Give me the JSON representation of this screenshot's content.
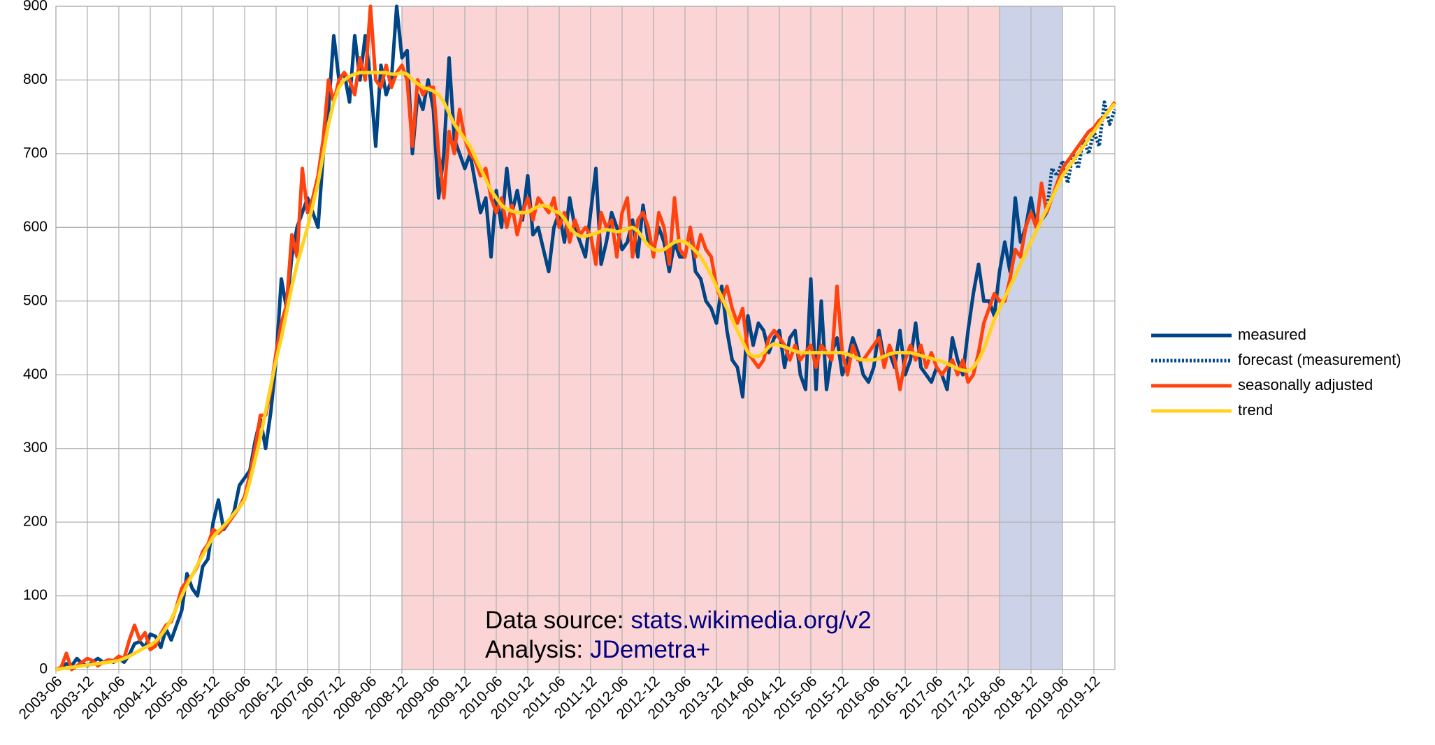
{
  "chart_data": {
    "type": "line",
    "categories": [
      "2003-06",
      null,
      null,
      null,
      null,
      null,
      "2003-12",
      null,
      null,
      null,
      null,
      null,
      "2004-06",
      null,
      null,
      null,
      null,
      null,
      "2004-12",
      null,
      null,
      null,
      null,
      null,
      "2005-06",
      null,
      null,
      null,
      null,
      null,
      "2005-12",
      null,
      null,
      null,
      null,
      null,
      "2006-06",
      null,
      null,
      null,
      null,
      null,
      "2006-12",
      null,
      null,
      null,
      null,
      null,
      "2007-06",
      null,
      null,
      null,
      null,
      null,
      "2007-12",
      null,
      null,
      null,
      null,
      null,
      "2008-06",
      null,
      null,
      null,
      null,
      null,
      "2008-12",
      null,
      null,
      null,
      null,
      null,
      "2009-06",
      null,
      null,
      null,
      null,
      null,
      "2009-12",
      null,
      null,
      null,
      null,
      null,
      "2010-06",
      null,
      null,
      null,
      null,
      null,
      "2010-12",
      null,
      null,
      null,
      null,
      null,
      "2011-06",
      null,
      null,
      null,
      null,
      null,
      "2011-12",
      null,
      null,
      null,
      null,
      null,
      "2012-06",
      null,
      null,
      null,
      null,
      null,
      "2012-12",
      null,
      null,
      null,
      null,
      null,
      "2013-06",
      null,
      null,
      null,
      null,
      null,
      "2013-12",
      null,
      null,
      null,
      null,
      null,
      "2014-06",
      null,
      null,
      null,
      null,
      null,
      "2014-12",
      null,
      null,
      null,
      null,
      null,
      "2015-06",
      null,
      null,
      null,
      null,
      null,
      "2015-12",
      null,
      null,
      null,
      null,
      null,
      "2016-06",
      null,
      null,
      null,
      null,
      null,
      "2016-12",
      null,
      null,
      null,
      null,
      null,
      "2017-06",
      null,
      null,
      null,
      null,
      null,
      "2017-12",
      null,
      null,
      null,
      null,
      null,
      "2018-06",
      null,
      null,
      null,
      null,
      null,
      "2018-12",
      null,
      null,
      null,
      null,
      null,
      "2019-06",
      null,
      null,
      null,
      null,
      null,
      "2019-12",
      null,
      null,
      null,
      null
    ],
    "series": [
      {
        "name": "measured",
        "color": "#004586",
        "style": "solid",
        "values": [
          0,
          2,
          8,
          5,
          15,
          8,
          5,
          10,
          15,
          10,
          12,
          10,
          15,
          10,
          20,
          35,
          38,
          30,
          48,
          45,
          30,
          55,
          40,
          60,
          80,
          130,
          110,
          100,
          140,
          150,
          200,
          230,
          190,
          200,
          215,
          250,
          260,
          270,
          310,
          340,
          300,
          350,
          420,
          530,
          490,
          560,
          600,
          620,
          640,
          620,
          600,
          700,
          760,
          860,
          800,
          810,
          770,
          860,
          800,
          860,
          800,
          710,
          820,
          780,
          800,
          900,
          830,
          840,
          700,
          780,
          760,
          800,
          760,
          640,
          700,
          830,
          720,
          700,
          680,
          700,
          660,
          620,
          640,
          560,
          650,
          600,
          680,
          620,
          650,
          610,
          670,
          590,
          600,
          570,
          540,
          600,
          620,
          580,
          640,
          600,
          580,
          560,
          620,
          680,
          550,
          580,
          620,
          600,
          570,
          580,
          610,
          560,
          630,
          580,
          570,
          600,
          580,
          540,
          580,
          560,
          560,
          600,
          540,
          530,
          500,
          490,
          470,
          520,
          460,
          420,
          410,
          370,
          480,
          440,
          470,
          460,
          430,
          450,
          460,
          410,
          450,
          460,
          400,
          380,
          530,
          380,
          500,
          380,
          430,
          450,
          400,
          420,
          450,
          430,
          400,
          390,
          410,
          460,
          420,
          430,
          410,
          460,
          400,
          420,
          470,
          410,
          400,
          390,
          410,
          400,
          380,
          450,
          420,
          400,
          460,
          510,
          550,
          500,
          500,
          480,
          540,
          580,
          540,
          640,
          580,
          600,
          640,
          600,
          610,
          620,
          null,
          null,
          null,
          null,
          null,
          null,
          null,
          null,
          null,
          null,
          null,
          null,
          null
        ]
      },
      {
        "name": "forecast (measurement)",
        "color": "#004586",
        "style": "dotted",
        "values": [
          null,
          null,
          null,
          null,
          null,
          null,
          null,
          null,
          null,
          null,
          null,
          null,
          null,
          null,
          null,
          null,
          null,
          null,
          null,
          null,
          null,
          null,
          null,
          null,
          null,
          null,
          null,
          null,
          null,
          null,
          null,
          null,
          null,
          null,
          null,
          null,
          null,
          null,
          null,
          null,
          null,
          null,
          null,
          null,
          null,
          null,
          null,
          null,
          null,
          null,
          null,
          null,
          null,
          null,
          null,
          null,
          null,
          null,
          null,
          null,
          null,
          null,
          null,
          null,
          null,
          null,
          null,
          null,
          null,
          null,
          null,
          null,
          null,
          null,
          null,
          null,
          null,
          null,
          null,
          null,
          null,
          null,
          null,
          null,
          null,
          null,
          null,
          null,
          null,
          null,
          null,
          null,
          null,
          null,
          null,
          null,
          null,
          null,
          null,
          null,
          null,
          null,
          null,
          null,
          null,
          null,
          null,
          null,
          null,
          null,
          null,
          null,
          null,
          null,
          null,
          null,
          null,
          null,
          null,
          null,
          null,
          null,
          null,
          null,
          null,
          null,
          null,
          null,
          null,
          null,
          null,
          null,
          null,
          null,
          null,
          null,
          null,
          null,
          null,
          null,
          null,
          null,
          null,
          null,
          null,
          null,
          null,
          null,
          null,
          null,
          null,
          null,
          null,
          null,
          null,
          null,
          null,
          null,
          null,
          null,
          null,
          null,
          null,
          null,
          null,
          null,
          null,
          null,
          null,
          null,
          null,
          null,
          null,
          null,
          null,
          null,
          null,
          null,
          null,
          null,
          null,
          null,
          null,
          null,
          null,
          null,
          null,
          null,
          null,
          620,
          680,
          670,
          690,
          660,
          700,
          680,
          720,
          700,
          730,
          710,
          770,
          740,
          760
        ]
      },
      {
        "name": "seasonally adjusted",
        "color": "#ff420e",
        "style": "solid",
        "values": [
          0,
          3,
          22,
          0,
          5,
          10,
          15,
          12,
          5,
          10,
          13,
          12,
          18,
          15,
          40,
          60,
          40,
          50,
          27,
          32,
          48,
          60,
          65,
          85,
          110,
          120,
          128,
          140,
          160,
          170,
          190,
          185,
          192,
          200,
          210,
          220,
          235,
          265,
          300,
          345,
          345,
          380,
          430,
          470,
          495,
          590,
          560,
          680,
          620,
          640,
          670,
          720,
          800,
          770,
          800,
          810,
          800,
          780,
          830,
          800,
          900,
          800,
          790,
          820,
          790,
          810,
          820,
          800,
          710,
          800,
          780,
          790,
          790,
          700,
          640,
          730,
          700,
          760,
          720,
          700,
          690,
          670,
          680,
          640,
          620,
          640,
          600,
          630,
          590,
          620,
          640,
          610,
          640,
          630,
          620,
          640,
          600,
          620,
          580,
          610,
          590,
          600,
          590,
          550,
          620,
          600,
          610,
          560,
          620,
          640,
          560,
          610,
          620,
          600,
          560,
          620,
          600,
          550,
          640,
          570,
          560,
          600,
          560,
          590,
          570,
          560,
          520,
          500,
          520,
          490,
          470,
          490,
          430,
          420,
          410,
          420,
          450,
          460,
          450,
          440,
          420,
          440,
          420,
          430,
          440,
          410,
          440,
          430,
          420,
          520,
          430,
          400,
          440,
          420,
          420,
          430,
          440,
          450,
          410,
          440,
          420,
          380,
          420,
          440,
          420,
          440,
          410,
          430,
          410,
          400,
          410,
          420,
          400,
          420,
          390,
          400,
          430,
          470,
          490,
          510,
          500,
          500,
          530,
          570,
          560,
          600,
          620,
          600,
          660,
          620,
          640,
          660,
          680,
          690,
          700,
          710,
          720,
          730,
          735,
          745,
          750,
          760,
          770
        ]
      },
      {
        "name": "trend",
        "color": "#ffd320",
        "style": "solid",
        "values": [
          0,
          1,
          2,
          3,
          4,
          5,
          6,
          7,
          8,
          9,
          10,
          11,
          12,
          15,
          18,
          22,
          26,
          30,
          33,
          38,
          46,
          56,
          68,
          84,
          100,
          115,
          128,
          142,
          155,
          168,
          180,
          188,
          195,
          203,
          212,
          220,
          230,
          255,
          285,
          315,
          350,
          385,
          420,
          450,
          485,
          520,
          550,
          575,
          600,
          630,
          660,
          700,
          740,
          770,
          790,
          800,
          805,
          808,
          810,
          810,
          810,
          810,
          810,
          810,
          808,
          808,
          810,
          808,
          800,
          795,
          790,
          788,
          785,
          780,
          770,
          755,
          740,
          730,
          720,
          710,
          695,
          680,
          665,
          650,
          640,
          630,
          625,
          622,
          620,
          620,
          620,
          625,
          628,
          630,
          628,
          622,
          620,
          612,
          600,
          592,
          588,
          588,
          590,
          592,
          595,
          597,
          596,
          594,
          595,
          598,
          600,
          595,
          585,
          575,
          570,
          568,
          570,
          575,
          580,
          582,
          580,
          575,
          568,
          560,
          548,
          535,
          520,
          505,
          490,
          475,
          460,
          445,
          430,
          425,
          425,
          430,
          438,
          442,
          440,
          438,
          435,
          432,
          430,
          430,
          430,
          430,
          430,
          430,
          430,
          430,
          430,
          428,
          425,
          422,
          420,
          420,
          420,
          422,
          425,
          428,
          430,
          430,
          430,
          430,
          428,
          426,
          424,
          422,
          420,
          418,
          415,
          412,
          408,
          406,
          405,
          410,
          420,
          435,
          455,
          475,
          490,
          505,
          520,
          535,
          550,
          565,
          580,
          595,
          610,
          625,
          640,
          655,
          670,
          680,
          690,
          700,
          710,
          720,
          730,
          740,
          750,
          760,
          768
        ]
      }
    ],
    "ylim": [
      0,
      900
    ],
    "yticks": [
      0,
      100,
      200,
      300,
      400,
      500,
      600,
      700,
      800,
      900
    ],
    "grid": true,
    "legend": "right",
    "bands": [
      {
        "from": "2008-12",
        "to": "2018-06",
        "color": "#fbd5d5"
      },
      {
        "from": "2018-06",
        "to": "2019-06",
        "color": "#ccd2e8"
      }
    ],
    "annotations": [
      {
        "text": "Data source:",
        "link": "stats.wikimedia.org/v2"
      },
      {
        "text": "Analysis:",
        "link": "JDemetra+"
      }
    ]
  }
}
